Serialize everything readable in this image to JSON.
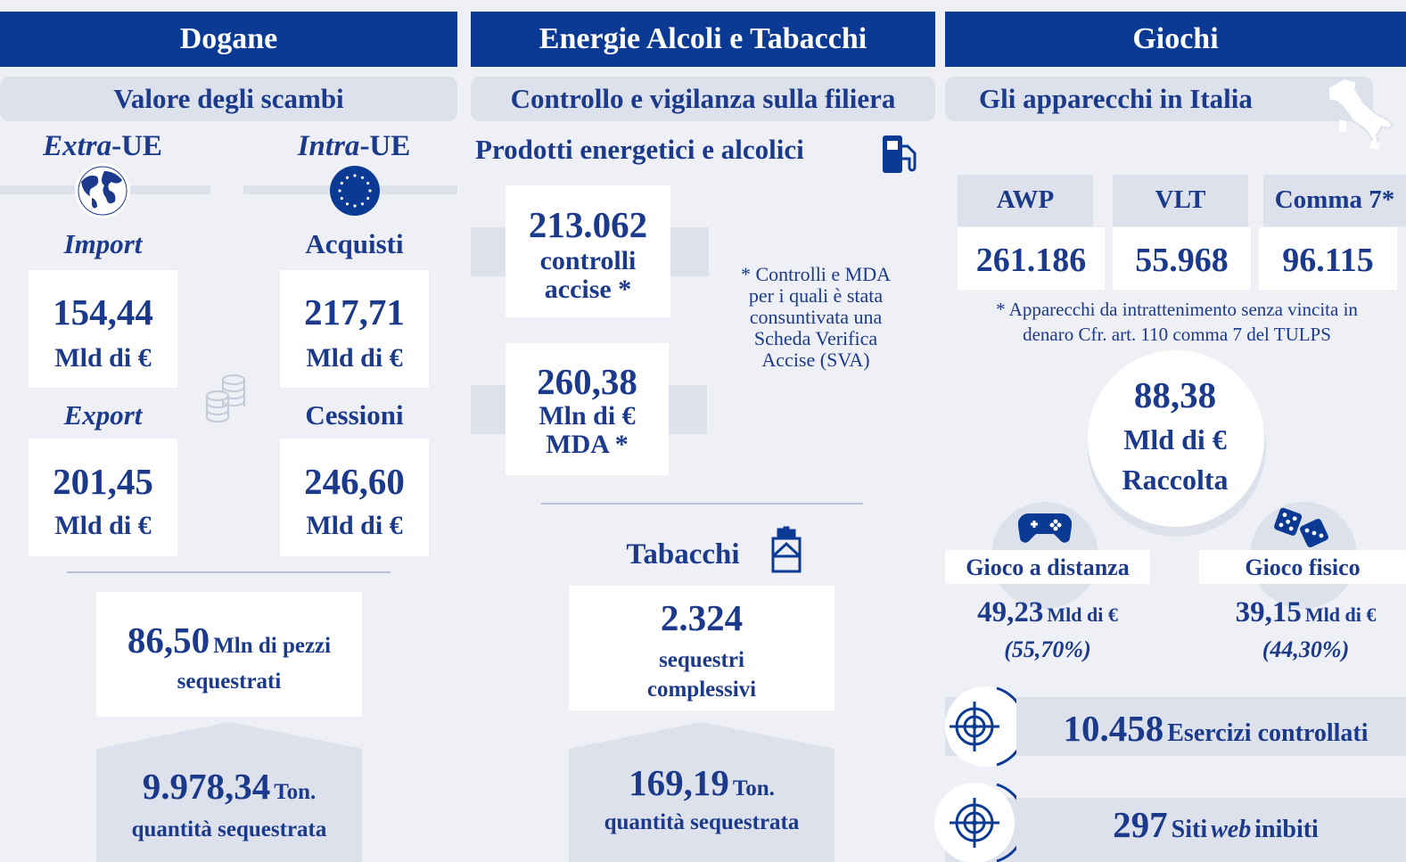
{
  "dogane": {
    "title": "Dogane",
    "section": "Valore degli scambi",
    "extra_ue": {
      "em": "Extra",
      "text": "-UE"
    },
    "intra_ue": {
      "em": "Intra",
      "text": "-UE"
    },
    "import": {
      "label": "Import",
      "value": "154,44",
      "unit": "Mld di €"
    },
    "export": {
      "label": "Export",
      "value": "201,45",
      "unit": "Mld di €"
    },
    "acquisti": {
      "label": "Acquisti",
      "value": "217,71",
      "unit": "Mld di €"
    },
    "cessioni": {
      "label": "Cessioni",
      "value": "246,60",
      "unit": "Mld di €"
    },
    "pezzi": {
      "value": "86,50",
      "unit": "Mln di pezzi",
      "text": "sequestrati"
    },
    "tonnellate": {
      "value": "9.978,34",
      "unit": "Ton.",
      "text": "quantità sequestrata"
    }
  },
  "energie": {
    "title": "Energie Alcoli e Tabacchi",
    "section": "Controllo e vigilanza sulla filiera",
    "subsection": "Prodotti energetici e alcolici",
    "controlli": {
      "value": "213.062",
      "text": "controlli accise *"
    },
    "mda": {
      "value": "260,38",
      "unit": "Mln di €",
      "text": "MDA *"
    },
    "note": "* Controlli e MDA per i quali è stata consuntivata una Scheda Verifica Accise (SVA)",
    "tabacchi": {
      "title": "Tabacchi",
      "sequestri": {
        "value": "2.324",
        "text": "sequestri complessivi"
      },
      "tonnellate": {
        "value": "169,19",
        "unit": "Ton.",
        "text": "quantità sequestrata"
      }
    }
  },
  "giochi": {
    "title": "Giochi",
    "section": "Gli apparecchi in Italia",
    "table": {
      "headers": [
        "AWP",
        "VLT",
        "Comma 7*"
      ],
      "values": [
        "261.186",
        "55.968",
        "96.115"
      ]
    },
    "note": "* Apparecchi da intrattenimento senza vincita in denaro Cfr. art. 110 comma 7 del TULPS",
    "raccolta": {
      "value": "88,38",
      "unit": "Mld di €",
      "text": "Raccolta"
    },
    "distanza": {
      "label": "Gioco a distanza",
      "value": "49,23",
      "unit": "Mld di €",
      "share": "(55,70%)"
    },
    "fisico": {
      "label": "Gioco fisico",
      "value": "39,15",
      "unit": "Mld di €",
      "share": "(44,30%)"
    },
    "esercizi": {
      "value": "10.458",
      "text": "Esercizi controllati"
    },
    "siti": {
      "value": "297",
      "text_1": "Siti",
      "em": "web",
      "text_2": "inibiti"
    }
  }
}
